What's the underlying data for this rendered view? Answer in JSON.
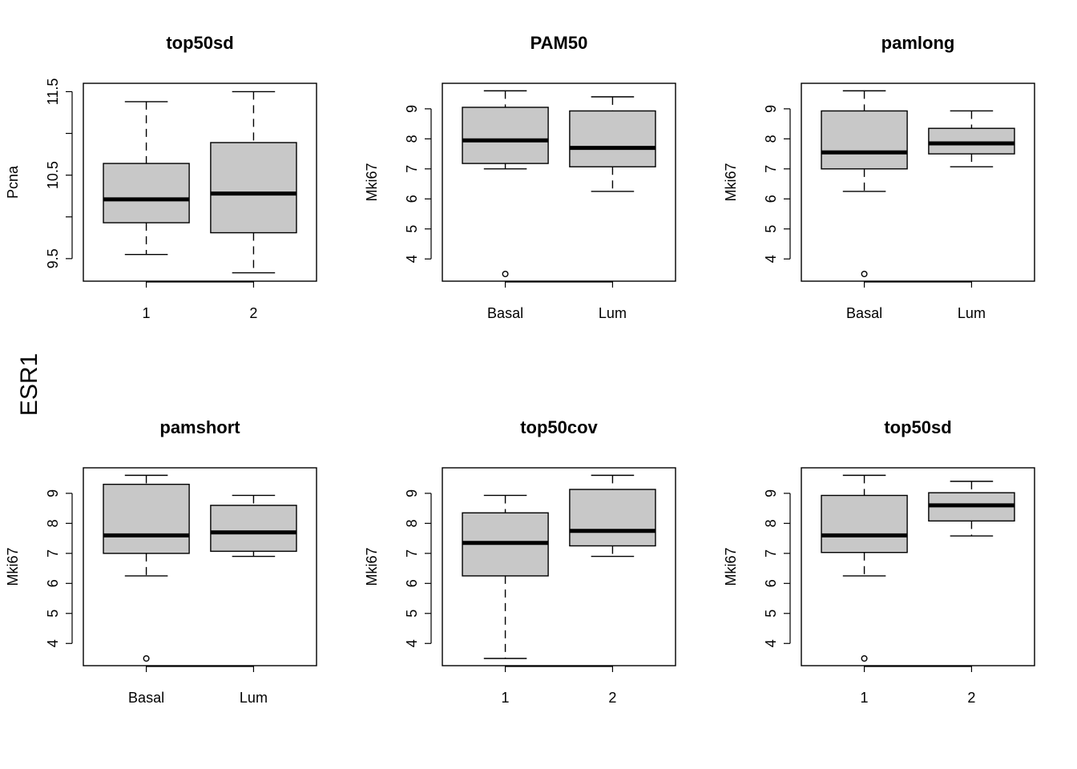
{
  "figure": {
    "outer_label": "ESR1",
    "box_fill": "#c8c8c8",
    "line_color": "#000000"
  },
  "chart_data": [
    {
      "type": "boxplot",
      "title": "top50sd",
      "ylabel": "Pcna",
      "ylim": [
        9.23,
        11.6
      ],
      "yticks": [
        9.5,
        10,
        10.5,
        11,
        11.5
      ],
      "ytick_labels": [
        "9.5",
        "",
        "10.5",
        "",
        "11.5"
      ],
      "categories": [
        "1",
        "2"
      ],
      "boxes": [
        {
          "category": "1",
          "min": 9.55,
          "q1": 9.93,
          "median": 10.21,
          "q3": 10.64,
          "max": 11.38,
          "outliers": []
        },
        {
          "category": "2",
          "min": 9.33,
          "q1": 9.81,
          "median": 10.28,
          "q3": 10.89,
          "max": 11.5,
          "outliers": []
        }
      ]
    },
    {
      "type": "boxplot",
      "title": "PAM50",
      "ylabel": "Mki67",
      "ylim": [
        3.26,
        9.85
      ],
      "yticks": [
        4,
        5,
        6,
        7,
        8,
        9
      ],
      "ytick_labels": [
        "4",
        "5",
        "6",
        "7",
        "8",
        "9"
      ],
      "categories": [
        "Basal",
        "Lum"
      ],
      "boxes": [
        {
          "category": "Basal",
          "min": 7.0,
          "q1": 7.18,
          "median": 7.95,
          "q3": 9.05,
          "max": 9.6,
          "outliers": [
            3.5
          ]
        },
        {
          "category": "Lum",
          "min": 6.25,
          "q1": 7.07,
          "median": 7.7,
          "q3": 8.93,
          "max": 9.4,
          "outliers": []
        }
      ]
    },
    {
      "type": "boxplot",
      "title": "pamlong",
      "ylabel": "Mki67",
      "ylim": [
        3.26,
        9.85
      ],
      "yticks": [
        4,
        5,
        6,
        7,
        8,
        9
      ],
      "ytick_labels": [
        "4",
        "5",
        "6",
        "7",
        "8",
        "9"
      ],
      "categories": [
        "Basal",
        "Lum"
      ],
      "boxes": [
        {
          "category": "Basal",
          "min": 6.25,
          "q1": 7.0,
          "median": 7.55,
          "q3": 8.93,
          "max": 9.6,
          "outliers": [
            3.5
          ]
        },
        {
          "category": "Lum",
          "min": 7.07,
          "q1": 7.5,
          "median": 7.85,
          "q3": 8.35,
          "max": 8.93,
          "outliers": []
        }
      ]
    },
    {
      "type": "boxplot",
      "title": "pamshort",
      "ylabel": "Mki67",
      "ylim": [
        3.26,
        9.85
      ],
      "yticks": [
        4,
        5,
        6,
        7,
        8,
        9
      ],
      "ytick_labels": [
        "4",
        "5",
        "6",
        "7",
        "8",
        "9"
      ],
      "categories": [
        "Basal",
        "Lum"
      ],
      "boxes": [
        {
          "category": "Basal",
          "min": 6.25,
          "q1": 7.0,
          "median": 7.6,
          "q3": 9.3,
          "max": 9.6,
          "outliers": [
            3.5
          ]
        },
        {
          "category": "Lum",
          "min": 6.9,
          "q1": 7.07,
          "median": 7.7,
          "q3": 8.6,
          "max": 8.93,
          "outliers": []
        }
      ]
    },
    {
      "type": "boxplot",
      "title": "top50cov",
      "ylabel": "Mki67",
      "ylim": [
        3.26,
        9.85
      ],
      "yticks": [
        4,
        5,
        6,
        7,
        8,
        9
      ],
      "ytick_labels": [
        "4",
        "5",
        "6",
        "7",
        "8",
        "9"
      ],
      "categories": [
        "1",
        "2"
      ],
      "boxes": [
        {
          "category": "1",
          "min": 3.5,
          "q1": 6.25,
          "median": 7.35,
          "q3": 8.35,
          "max": 8.93,
          "outliers": []
        },
        {
          "category": "2",
          "min": 6.9,
          "q1": 7.25,
          "median": 7.75,
          "q3": 9.13,
          "max": 9.6,
          "outliers": []
        }
      ]
    },
    {
      "type": "boxplot",
      "title": "top50sd",
      "ylabel": "Mki67",
      "ylim": [
        3.26,
        9.85
      ],
      "yticks": [
        4,
        5,
        6,
        7,
        8,
        9
      ],
      "ytick_labels": [
        "4",
        "5",
        "6",
        "7",
        "8",
        "9"
      ],
      "categories": [
        "1",
        "2"
      ],
      "boxes": [
        {
          "category": "1",
          "min": 6.25,
          "q1": 7.03,
          "median": 7.6,
          "q3": 8.93,
          "max": 9.6,
          "outliers": [
            3.5
          ]
        },
        {
          "category": "2",
          "min": 7.58,
          "q1": 8.08,
          "median": 8.6,
          "q3": 9.02,
          "max": 9.4,
          "outliers": []
        }
      ]
    }
  ]
}
